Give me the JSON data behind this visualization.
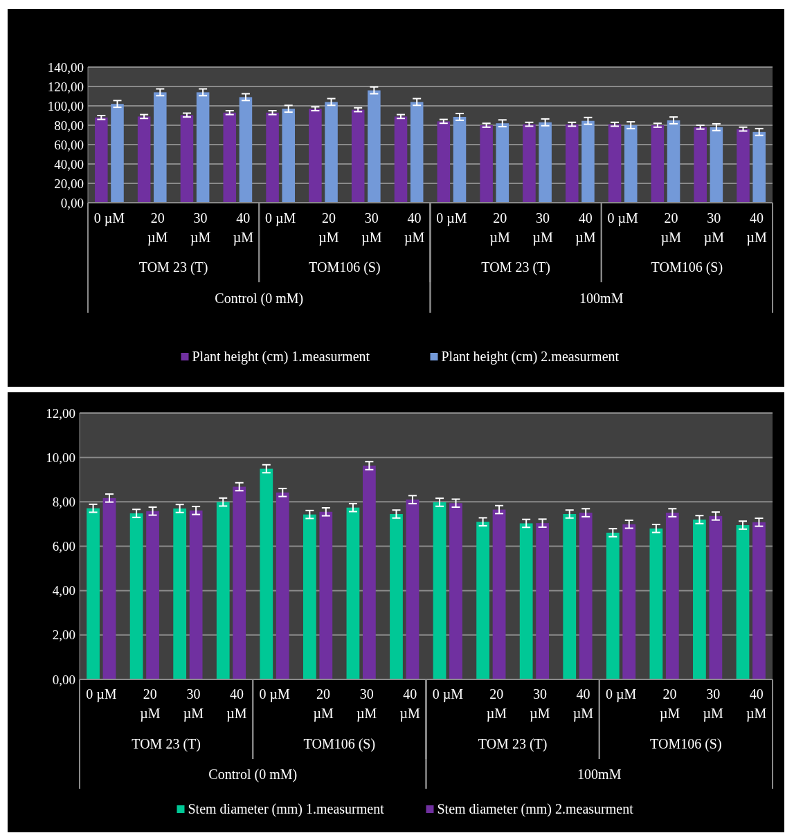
{
  "chart_data": [
    {
      "type": "bar",
      "categories": [
        "0 µM",
        "20 µM",
        "30 µM",
        "40 µM",
        "0 µM",
        "20 µM",
        "30 µM",
        "40 µM",
        "0 µM",
        "20 µM",
        "30 µM",
        "40 µM",
        "0 µM",
        "20 µM",
        "30 µM",
        "40 µM"
      ],
      "series": [
        {
          "name": "Plant height (cm) 1.measurment",
          "color": "#7030a0",
          "values": [
            88,
            89,
            90.5,
            93,
            93,
            97,
            96,
            89,
            84,
            80,
            81,
            81,
            81,
            80,
            78,
            76
          ],
          "errors": [
            2,
            2,
            2,
            2,
            2,
            2,
            2,
            2,
            2,
            2,
            2,
            2,
            2,
            2,
            2,
            2
          ]
        },
        {
          "name": "Plant height (cm) 2.measurment",
          "color": "#7399d8",
          "values": [
            102,
            114,
            114,
            109,
            97,
            104,
            116,
            104,
            88.6,
            82,
            83,
            84.5,
            80,
            85,
            78,
            73
          ],
          "errors": [
            3.5,
            3.5,
            3.5,
            3.5,
            3.5,
            3.5,
            3.5,
            3.5,
            3.5,
            3.5,
            3.5,
            3.5,
            3.5,
            3.5,
            3.5,
            3.5
          ]
        }
      ],
      "ylim": [
        0,
        140
      ],
      "yticks": [
        {
          "value": 0,
          "label": "0,00"
        },
        {
          "value": 20,
          "label": "20,00"
        },
        {
          "value": 40,
          "label": "40,00"
        },
        {
          "value": 60,
          "label": "60,00"
        },
        {
          "value": 80,
          "label": "80,00"
        },
        {
          "value": 100,
          "label": "100,00"
        },
        {
          "value": 120,
          "label": "120,00"
        },
        {
          "value": 140,
          "label": "140,00"
        }
      ],
      "grid": "y",
      "legend": "bottom",
      "annotations": [
        "TOM 23 (T)",
        "TOM106 (S)",
        "TOM 23 (T)",
        "TOM106 (S)",
        "Control (0 mM)",
        "100mM"
      ]
    },
    {
      "type": "bar",
      "categories": [
        "0 µM",
        "20 µM",
        "30 µM",
        "40 µM",
        "0 µM",
        "20 µM",
        "30 µM",
        "40 µM",
        "0 µM",
        "20 µM",
        "30 µM",
        "40 µM",
        "0 µM",
        "20 µM",
        "30 µM",
        "40 µM"
      ],
      "series": [
        {
          "name": "Stem diameter (mm) 1.measurment",
          "color": "#00c896",
          "values": [
            7.71,
            7.48,
            7.7,
            7.99,
            9.49,
            7.43,
            7.74,
            7.45,
            7.98,
            7.1,
            7.03,
            7.45,
            6.61,
            6.8,
            7.2,
            6.95
          ],
          "errors": [
            0.18,
            0.18,
            0.18,
            0.18,
            0.18,
            0.18,
            0.18,
            0.18,
            0.18,
            0.18,
            0.18,
            0.18,
            0.18,
            0.18,
            0.18,
            0.18
          ]
        },
        {
          "name": "Stem diameter (mm) 2.measurment",
          "color": "#7030a0",
          "values": [
            8.17,
            7.58,
            7.61,
            8.68,
            8.42,
            7.55,
            9.63,
            8.1,
            7.94,
            7.65,
            7.04,
            7.51,
            6.99,
            7.51,
            7.36,
            7.08
          ],
          "errors": [
            0.18,
            0.18,
            0.18,
            0.18,
            0.18,
            0.18,
            0.18,
            0.18,
            0.18,
            0.18,
            0.18,
            0.18,
            0.18,
            0.18,
            0.18,
            0.18
          ]
        }
      ],
      "ylim": [
        0,
        12
      ],
      "yticks": [
        {
          "value": 0,
          "label": "0,00"
        },
        {
          "value": 2,
          "label": "2,00"
        },
        {
          "value": 4,
          "label": "4,00"
        },
        {
          "value": 6,
          "label": "6,00"
        },
        {
          "value": 8,
          "label": "8,00"
        },
        {
          "value": 10,
          "label": "10,00"
        },
        {
          "value": 12,
          "label": "12,00"
        }
      ],
      "grid": "y",
      "legend": "bottom",
      "annotations": [
        "TOM 23 (T)",
        "TOM106 (S)",
        "TOM 23 (T)",
        "TOM106 (S)",
        "Control (0 mM)",
        "100mM"
      ]
    }
  ]
}
